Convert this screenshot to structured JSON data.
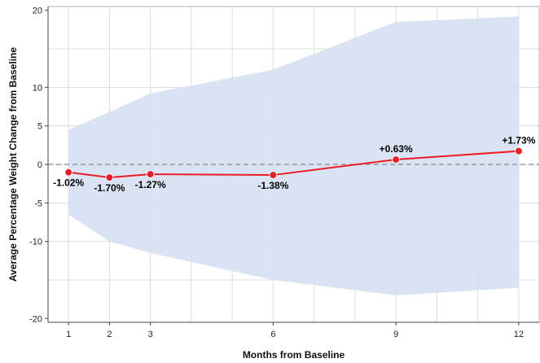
{
  "chart_data": {
    "type": "line",
    "title": "",
    "xlabel": "Months from Baseline",
    "ylabel": "Average Percentage Weight Change from Baseline",
    "x": [
      1,
      2,
      3,
      6,
      9,
      12
    ],
    "xlim": [
      0.5,
      12.5
    ],
    "ylim": [
      -20.5,
      20.5
    ],
    "x_ticks": [
      1,
      2,
      3,
      6,
      9,
      12
    ],
    "x_tick_labels": [
      "1",
      "2",
      "3",
      "6",
      "9",
      "12"
    ],
    "x_minor_grid": [
      1,
      2,
      3,
      4,
      5,
      6,
      7,
      8,
      9,
      10,
      11,
      12
    ],
    "y_ticks": [
      -20,
      -10,
      -5,
      0,
      5,
      10,
      20
    ],
    "y_tick_labels": [
      "-20",
      "-10",
      "-5",
      "0",
      "5",
      "10",
      "20"
    ],
    "y_grid": [
      -15,
      -10,
      -5,
      0,
      5,
      10,
      15
    ],
    "grid": true,
    "reference_line": {
      "y": 0,
      "style": "dashed",
      "color": "#888888"
    },
    "series": [
      {
        "values": [
          -1.02,
          -1.7,
          -1.27,
          -1.38,
          0.63,
          1.73
        ],
        "labels": [
          "-1.02%",
          "-1.70%",
          "-1.27%",
          "-1.38%",
          "+0.63%",
          "+1.73%"
        ],
        "label_position": [
          "below",
          "below",
          "below",
          "below",
          "above",
          "above"
        ],
        "color": "#ee1c25",
        "marker": "circle"
      }
    ],
    "band": {
      "lower": [
        -6.5,
        -10.0,
        -11.5,
        -15.0,
        -17.0,
        -16.0
      ],
      "upper": [
        4.5,
        6.8,
        9.2,
        12.3,
        18.5,
        19.2
      ],
      "color": "#d5e0f2"
    }
  }
}
